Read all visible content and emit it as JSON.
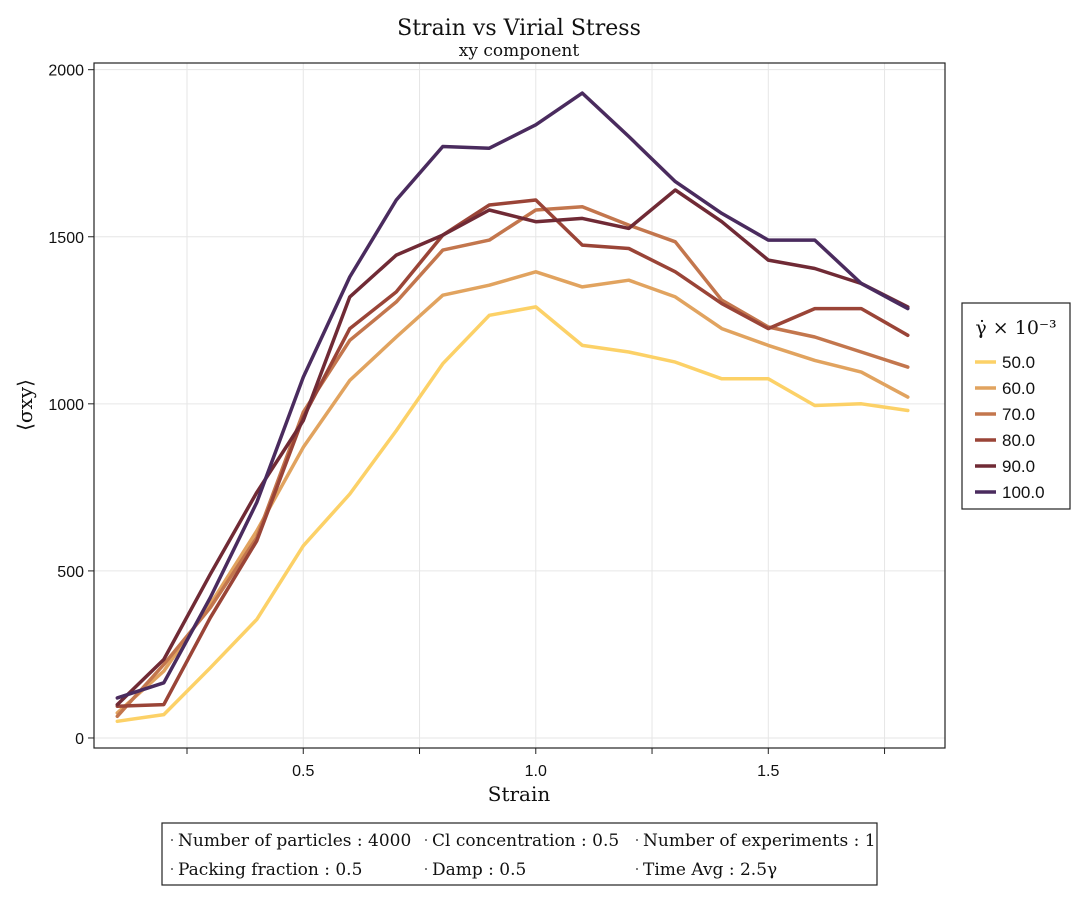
{
  "chart_data": {
    "type": "line",
    "title": "Strain vs Virial Stress",
    "subtitle": "xy component",
    "xlabel": "Strain",
    "ylabel": "⟨σxy⟩",
    "xlim": [
      0.05,
      1.88
    ],
    "ylim": [
      -30,
      2020
    ],
    "xticks": [
      0.5,
      1.0,
      1.5
    ],
    "xtick_labels": [
      "0.5",
      "1.0",
      "1.5"
    ],
    "yticks": [
      0,
      500,
      1000,
      1500,
      2000
    ],
    "ytick_labels": [
      "0",
      "500",
      "1000",
      "1500",
      "2000"
    ],
    "grid": true,
    "legend": {
      "title": "γ̇ × 10⁻³",
      "placement": "right outside",
      "entries": [
        "50.0",
        "60.0",
        "70.0",
        "80.0",
        "90.0",
        "100.0"
      ]
    },
    "x": [
      0.1,
      0.2,
      0.3,
      0.4,
      0.5,
      0.6,
      0.7,
      0.8,
      0.9,
      1.0,
      1.1,
      1.2,
      1.3,
      1.4,
      1.5,
      1.6,
      1.7,
      1.8
    ],
    "series": [
      {
        "name": "50.0",
        "color": "#fcd167",
        "values": [
          50,
          70,
          210,
          355,
          575,
          730,
          920,
          1120,
          1265,
          1290,
          1175,
          1155,
          1125,
          1075,
          1075,
          995,
          1000,
          980
        ]
      },
      {
        "name": "60.0",
        "color": "#e1a35f",
        "values": [
          75,
          200,
          400,
          620,
          870,
          1070,
          1200,
          1325,
          1355,
          1395,
          1350,
          1370,
          1320,
          1225,
          1175,
          1130,
          1095,
          1020
        ]
      },
      {
        "name": "70.0",
        "color": "#c3764d",
        "values": [
          65,
          220,
          390,
          600,
          975,
          1190,
          1305,
          1460,
          1490,
          1580,
          1590,
          1535,
          1485,
          1310,
          1230,
          1200,
          1155,
          1110
        ]
      },
      {
        "name": "80.0",
        "color": "#9a4437",
        "values": [
          95,
          100,
          360,
          590,
          960,
          1225,
          1335,
          1505,
          1595,
          1610,
          1475,
          1465,
          1395,
          1300,
          1225,
          1285,
          1285,
          1205
        ]
      },
      {
        "name": "90.0",
        "color": "#702a35",
        "values": [
          100,
          235,
          490,
          735,
          950,
          1320,
          1445,
          1505,
          1580,
          1545,
          1555,
          1525,
          1640,
          1545,
          1430,
          1405,
          1360,
          1290
        ]
      },
      {
        "name": "100.0",
        "color": "#4a2b5e",
        "values": [
          120,
          165,
          420,
          705,
          1080,
          1380,
          1610,
          1770,
          1765,
          1835,
          1930,
          1800,
          1665,
          1570,
          1490,
          1490,
          1360,
          1285
        ]
      }
    ]
  },
  "info_box": {
    "items": [
      "Number of particles : 4000",
      "Cl concentration : 0.5",
      "Number of experiments : 1",
      "Packing fraction : 0.5",
      "Damp : 0.5",
      "Time Avg : 2.5γ"
    ]
  }
}
